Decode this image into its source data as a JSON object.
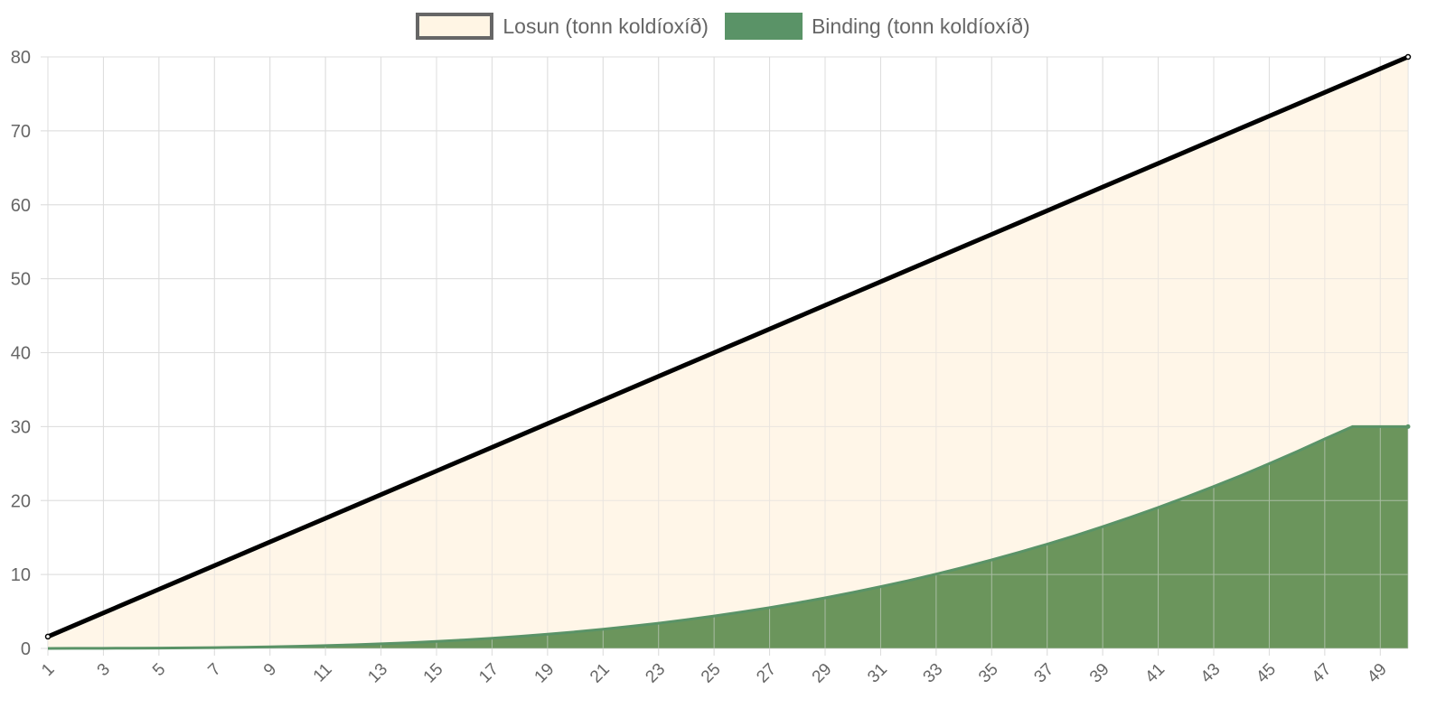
{
  "chart_data": {
    "type": "area",
    "x": [
      1,
      2,
      3,
      4,
      5,
      6,
      7,
      8,
      9,
      10,
      11,
      12,
      13,
      14,
      15,
      16,
      17,
      18,
      19,
      20,
      21,
      22,
      23,
      24,
      25,
      26,
      27,
      28,
      29,
      30,
      31,
      32,
      33,
      34,
      35,
      36,
      37,
      38,
      39,
      40,
      41,
      42,
      43,
      44,
      45,
      46,
      47,
      48,
      49,
      50
    ],
    "x_tick_labels": [
      "1",
      "3",
      "5",
      "7",
      "9",
      "11",
      "13",
      "15",
      "17",
      "19",
      "21",
      "23",
      "25",
      "27",
      "29",
      "31",
      "33",
      "35",
      "37",
      "39",
      "41",
      "43",
      "45",
      "47",
      "49"
    ],
    "y_tick_labels": [
      "0",
      "10",
      "20",
      "30",
      "40",
      "50",
      "60",
      "70",
      "80"
    ],
    "ylim": [
      0,
      80
    ],
    "grid": true,
    "legend_position": "top-center",
    "series": [
      {
        "name": "Losun (tonn koldíoxíð)",
        "values": [
          1.6,
          3.2,
          4.8,
          6.4,
          8.0,
          9.6,
          11.2,
          12.8,
          14.4,
          16.0,
          17.6,
          19.2,
          20.8,
          22.4,
          24.0,
          25.6,
          27.2,
          28.8,
          30.4,
          32.0,
          33.6,
          35.2,
          36.8,
          38.4,
          40.0,
          41.6,
          43.2,
          44.8,
          46.4,
          48.0,
          49.6,
          51.2,
          52.8,
          54.4,
          56.0,
          57.6,
          59.2,
          60.8,
          62.4,
          64.0,
          65.6,
          67.2,
          68.8,
          70.4,
          72.0,
          73.6,
          75.2,
          76.8,
          78.4,
          80.0
        ],
        "line_color": "#000000",
        "fill_color": "#fff5e4",
        "legend_border_color": "#666666"
      },
      {
        "name": "Binding (tonn koldíoxíð)",
        "values": [
          0.0,
          0.01,
          0.02,
          0.03,
          0.05,
          0.07,
          0.11,
          0.15,
          0.21,
          0.29,
          0.38,
          0.49,
          0.62,
          0.77,
          0.95,
          1.15,
          1.38,
          1.64,
          1.92,
          2.24,
          2.6,
          2.99,
          3.41,
          3.88,
          4.38,
          4.93,
          5.52,
          6.16,
          6.84,
          7.57,
          8.35,
          9.17,
          10.05,
          10.98,
          11.97,
          13.01,
          14.1,
          15.25,
          16.46,
          17.73,
          19.06,
          20.45,
          21.9,
          23.41,
          24.99,
          26.63,
          28.33,
          30.0,
          30.0,
          30.0
        ],
        "line_color": "#5a9367",
        "fill_color": "#6b955c",
        "legend_color": "#5a9367"
      }
    ]
  }
}
